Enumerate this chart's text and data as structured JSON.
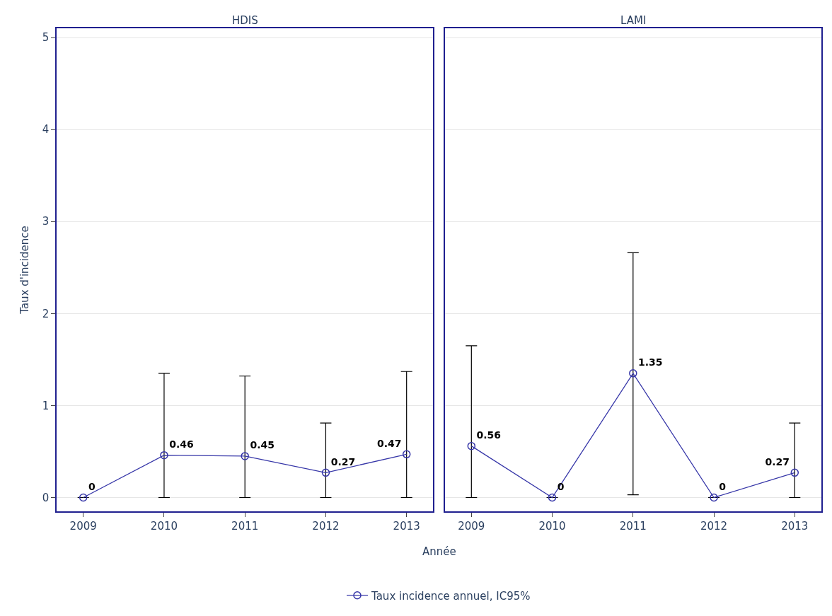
{
  "chart_data": [
    {
      "type": "line",
      "title": "HDIS",
      "xlabel": "Année",
      "ylabel": "Taux d'incidence",
      "categories": [
        "2009",
        "2010",
        "2011",
        "2012",
        "2013"
      ],
      "ylim": [
        -0.15,
        5.1
      ],
      "yticks": [
        0,
        1,
        2,
        3,
        4,
        5
      ],
      "grid": "y",
      "legend": "bottom",
      "marker": "circle",
      "line_style": "solid",
      "data_labels": true,
      "series": [
        {
          "name": "Taux incidence annuel, IC95%",
          "color": "#3636a8",
          "values": [
            0,
            0.46,
            0.45,
            0.27,
            0.47
          ],
          "errors": [
            null,
            [
              0,
              1.35
            ],
            [
              0,
              1.32
            ],
            [
              0,
              0.81
            ],
            [
              0,
              1.37
            ]
          ]
        }
      ]
    },
    {
      "type": "line",
      "title": "LAMI",
      "categories": [
        "2009",
        "2010",
        "2011",
        "2012",
        "2013"
      ],
      "ylim": [
        -0.15,
        5.1
      ],
      "yticks": [
        0,
        1,
        2,
        3,
        4,
        5
      ],
      "grid": "y",
      "tick_labels": "x",
      "marker": "circle",
      "line_style": "solid",
      "data_labels": true,
      "series": [
        {
          "color": "#3636a8",
          "values": [
            0.56,
            0,
            1.35,
            0,
            0.27
          ],
          "errors": [
            [
              0,
              1.65
            ],
            null,
            [
              0.03,
              2.66
            ],
            null,
            [
              0,
              0.81
            ]
          ]
        }
      ]
    }
  ]
}
